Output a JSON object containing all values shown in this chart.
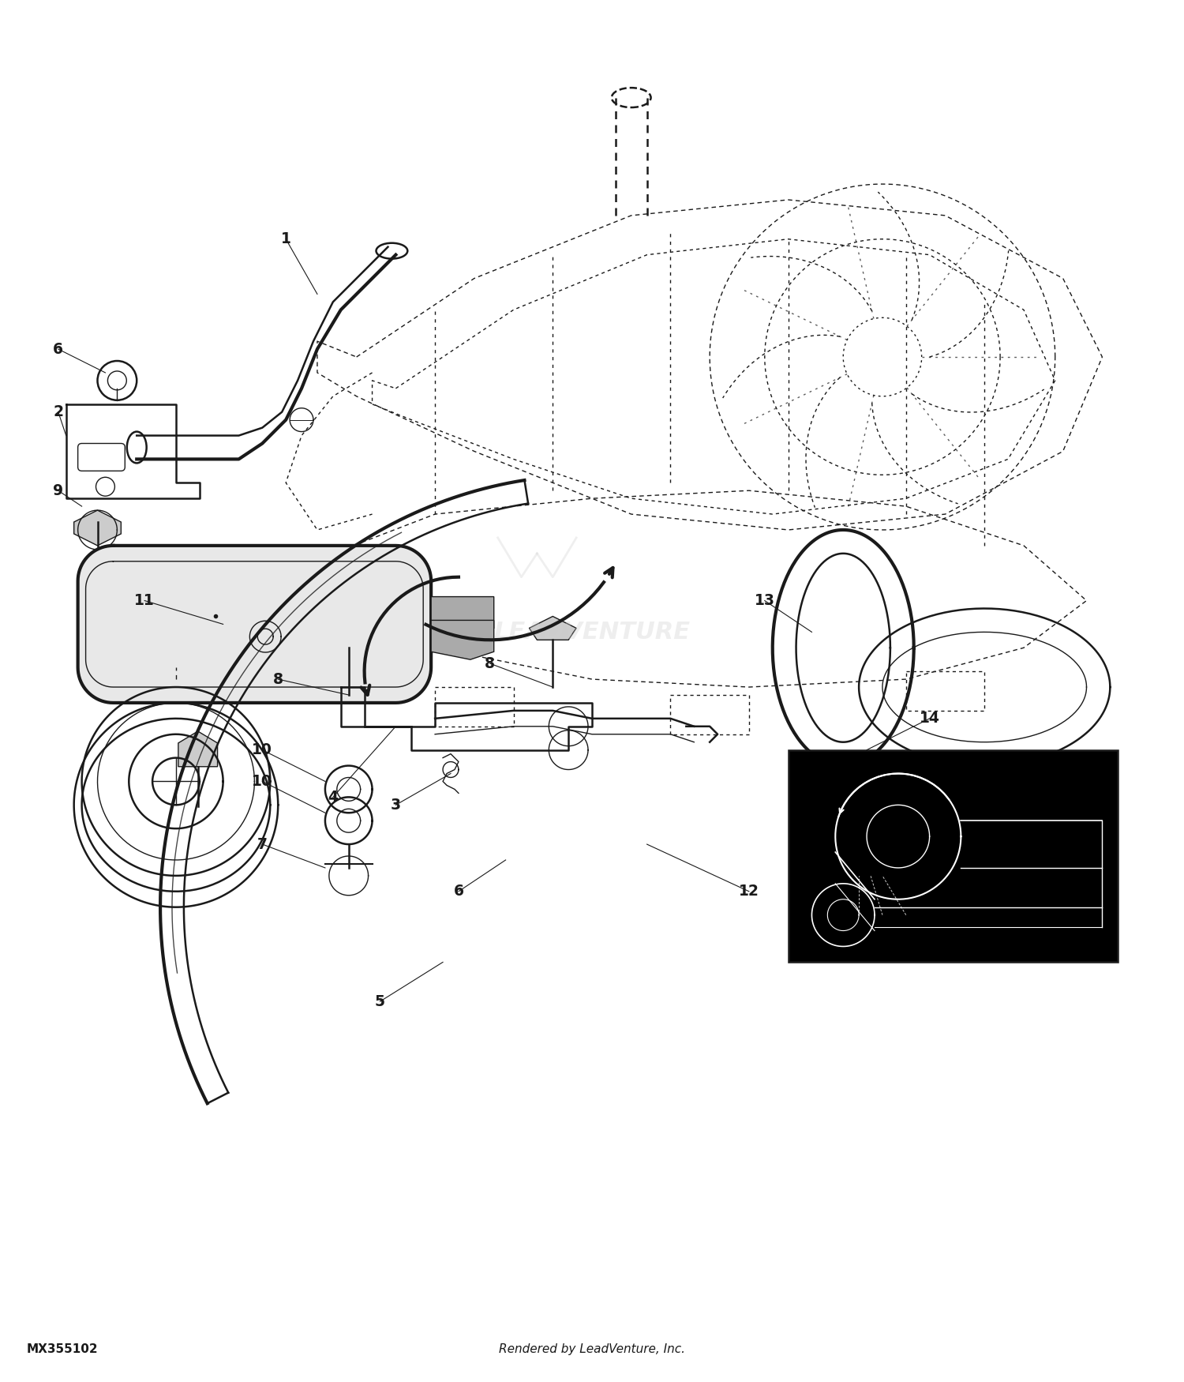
{
  "bg_color": "#ffffff",
  "line_color": "#1a1a1a",
  "fig_width": 15.0,
  "fig_height": 17.5,
  "dpi": 100,
  "bottom_left_text": "MX355102",
  "bottom_center_text": "Rendered by LeadVenture, Inc."
}
